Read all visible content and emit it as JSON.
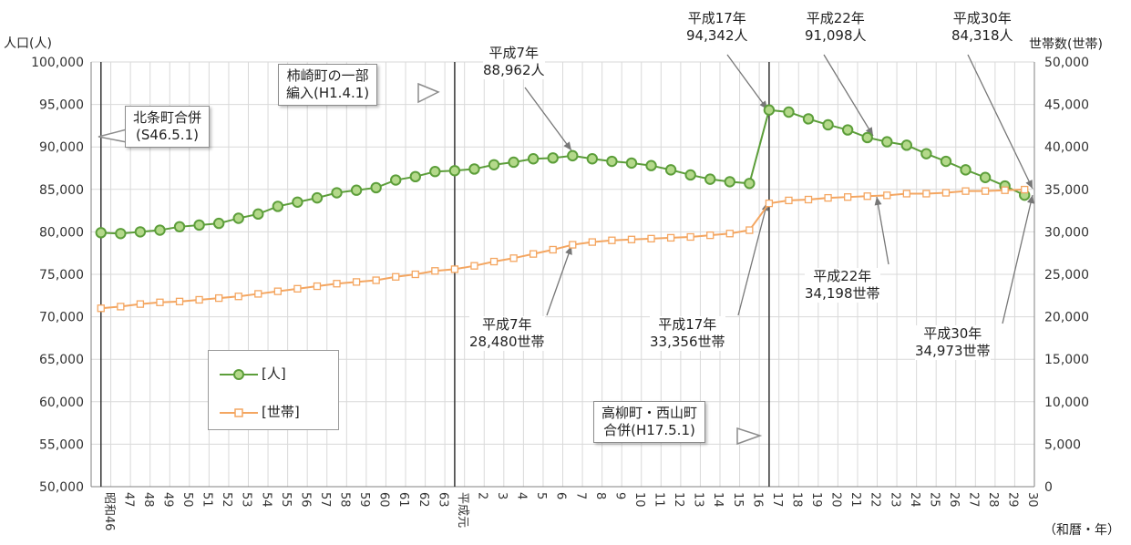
{
  "chart_data": {
    "type": "line",
    "x_unit_label": "（和暦・年）",
    "categories": [
      "昭和46",
      "47",
      "48",
      "49",
      "50",
      "51",
      "52",
      "53",
      "54",
      "55",
      "56",
      "57",
      "58",
      "59",
      "60",
      "61",
      "62",
      "63",
      "平成元",
      "2",
      "3",
      "4",
      "5",
      "6",
      "7",
      "8",
      "9",
      "10",
      "11",
      "12",
      "13",
      "14",
      "15",
      "16",
      "17",
      "18",
      "19",
      "20",
      "21",
      "22",
      "23",
      "24",
      "25",
      "26",
      "27",
      "28",
      "29",
      "30"
    ],
    "y_left": {
      "label": "人口(人)",
      "min": 50000,
      "max": 100000,
      "ticks": [
        "50,000",
        "55,000",
        "60,000",
        "65,000",
        "70,000",
        "75,000",
        "80,000",
        "85,000",
        "90,000",
        "95,000",
        "100,000"
      ]
    },
    "y_right": {
      "label": "世帯数(世帯)",
      "min": 0,
      "max": 50000,
      "ticks": [
        "0",
        "5,000",
        "10,000",
        "15,000",
        "20,000",
        "25,000",
        "30,000",
        "35,000",
        "40,000",
        "45,000",
        "50,000"
      ]
    },
    "series": [
      {
        "name": "[人]",
        "axis": "left",
        "color": "#5c9e3a",
        "fill": "#b4d98a",
        "values": [
          79900,
          79800,
          80000,
          80200,
          80600,
          80800,
          81000,
          81600,
          82100,
          83000,
          83500,
          84000,
          84600,
          84900,
          85200,
          86100,
          86500,
          87100,
          87200,
          87400,
          87900,
          88200,
          88600,
          88700,
          88962,
          88600,
          88300,
          88100,
          87800,
          87300,
          86700,
          86200,
          85900,
          85700,
          94342,
          94100,
          93300,
          92600,
          92000,
          91098,
          90600,
          90200,
          89200,
          88300,
          87300,
          86400,
          85400,
          84318
        ]
      },
      {
        "name": "[世帯]",
        "axis": "right",
        "color": "#f4a661",
        "fill": "#ffffff",
        "values": [
          21000,
          21200,
          21500,
          21700,
          21800,
          22000,
          22200,
          22400,
          22700,
          23000,
          23300,
          23600,
          23900,
          24100,
          24300,
          24700,
          25000,
          25400,
          25600,
          26000,
          26500,
          26900,
          27400,
          27900,
          28480,
          28800,
          29000,
          29100,
          29200,
          29300,
          29400,
          29600,
          29800,
          30200,
          33356,
          33700,
          33800,
          34000,
          34100,
          34198,
          34300,
          34500,
          34500,
          34600,
          34800,
          34800,
          34900,
          34973
        ]
      }
    ],
    "event_lines": [
      {
        "category": "昭和46",
        "label": "北条町合併\n(S46.5.1)"
      },
      {
        "category": "平成元",
        "label": "柿崎町の一部\n編入(H1.4.1)"
      },
      {
        "category": "17",
        "label": "高柳町・西山町\n合併(H17.5.1)"
      }
    ],
    "annotations": [
      {
        "text": "平成7年\n88,962人"
      },
      {
        "text": "平成17年\n94,342人"
      },
      {
        "text": "平成22年\n91,098人"
      },
      {
        "text": "平成30年\n84,318人"
      },
      {
        "text": "平成7年\n28,480世帯"
      },
      {
        "text": "平成17年\n33,356世帯"
      },
      {
        "text": "平成22年\n34,198世帯"
      },
      {
        "text": "平成30年\n34,973世帯"
      }
    ],
    "legend": [
      "[人]",
      "[世帯]"
    ],
    "grid": true
  }
}
